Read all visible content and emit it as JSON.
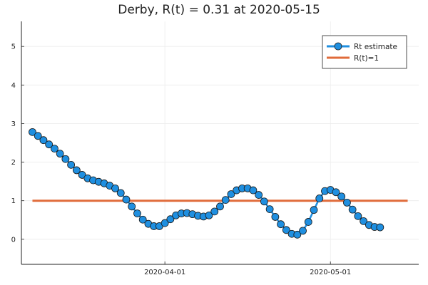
{
  "chart_data": {
    "type": "line",
    "title": "Derby, R(t) = 0.31 at 2020-05-15",
    "xlabel": "",
    "ylabel": "",
    "x_start": "2020-03-08",
    "x_end": "2020-05-15",
    "xlim": [
      "2020-03-06",
      "2020-05-17"
    ],
    "ylim": [
      -0.65,
      5.65
    ],
    "yticks": [
      0,
      1,
      2,
      3,
      4,
      5
    ],
    "xticks": [
      "2020-04-01",
      "2020-05-01"
    ],
    "grid": true,
    "legend_position": "top-right",
    "series": [
      {
        "name": "Rt estimate",
        "color": "#1f8fe0",
        "marker": "circle",
        "values": [
          2.78,
          2.68,
          2.57,
          2.46,
          2.35,
          2.22,
          2.08,
          1.93,
          1.79,
          1.67,
          1.58,
          1.53,
          1.49,
          1.45,
          1.39,
          1.32,
          1.2,
          1.03,
          0.85,
          0.67,
          0.51,
          0.4,
          0.34,
          0.34,
          0.42,
          0.52,
          0.62,
          0.67,
          0.68,
          0.65,
          0.61,
          0.59,
          0.62,
          0.72,
          0.85,
          1.02,
          1.17,
          1.27,
          1.32,
          1.32,
          1.27,
          1.15,
          0.98,
          0.78,
          0.58,
          0.39,
          0.24,
          0.14,
          0.12,
          0.22,
          0.45,
          0.76,
          1.06,
          1.25,
          1.28,
          1.22,
          1.11,
          0.95,
          0.77,
          0.6,
          0.47,
          0.37,
          0.32,
          0.31
        ]
      },
      {
        "name": "R(t)=1",
        "color": "#e06b3a",
        "marker": "none",
        "constant": 1
      }
    ]
  }
}
